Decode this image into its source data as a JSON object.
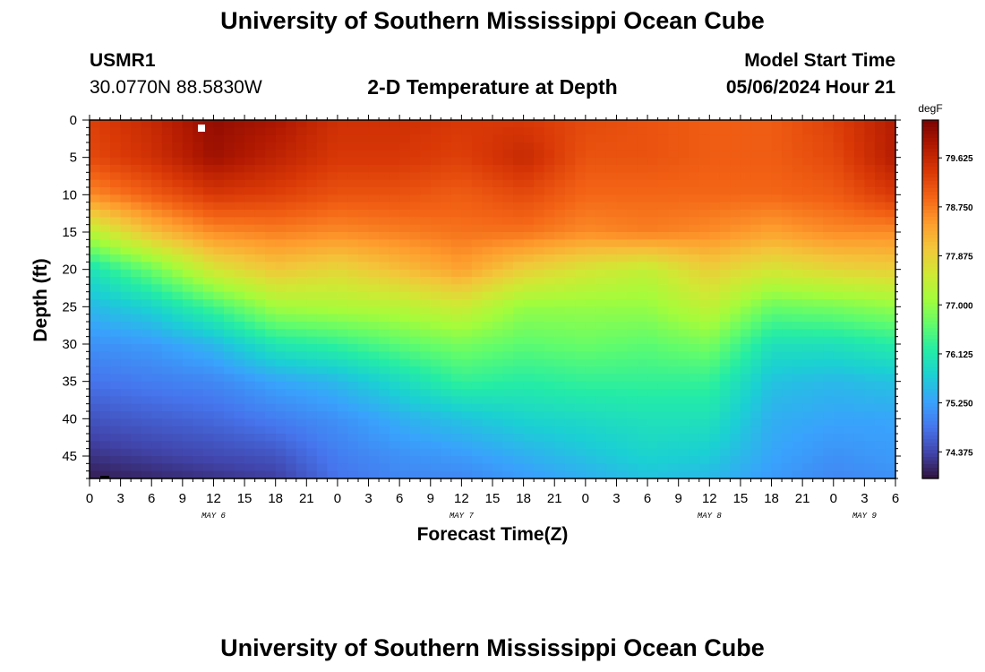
{
  "header": {
    "title": "University of Southern Mississippi Ocean Cube",
    "station_id": "USMR1",
    "station_coords": "30.0770N  88.5830W",
    "subtitle": "2-D Temperature at Depth",
    "model_start_label": "Model Start Time",
    "model_start_value": "05/06/2024 Hour 21"
  },
  "footer": {
    "title": "University of Southern Mississippi Ocean Cube"
  },
  "chart_data": {
    "type": "heatmap",
    "title": "2-D Temperature at Depth",
    "xlabel": "Forecast Time(Z)",
    "ylabel": "Depth (ft)",
    "x_hours_range": [
      0,
      78
    ],
    "x_tick_labels": [
      "0",
      "3",
      "6",
      "9",
      "12",
      "15",
      "18",
      "21",
      "0",
      "3",
      "6",
      "9",
      "12",
      "15",
      "18",
      "21",
      "0",
      "3",
      "6",
      "9",
      "12",
      "15",
      "18",
      "21",
      "0",
      "3",
      "6"
    ],
    "date_labels": [
      {
        "text": "MAY 6",
        "hour": 12
      },
      {
        "text": "MAY 7",
        "hour": 36
      },
      {
        "text": "MAY 8",
        "hour": 60
      },
      {
        "text": "MAY 9",
        "hour": 75
      }
    ],
    "y_range": [
      0,
      48
    ],
    "y_tick_labels": [
      "0",
      "5",
      "10",
      "15",
      "20",
      "25",
      "30",
      "35",
      "40",
      "45"
    ],
    "colorbar": {
      "unit": "degF",
      "min": 73.9,
      "max": 80.3,
      "tick_labels": [
        "79.625",
        "78.750",
        "77.875",
        "77.000",
        "76.125",
        "75.250",
        "74.375"
      ],
      "colors": [
        "#30123b",
        "#4145ab",
        "#4675ed",
        "#39a2fc",
        "#1bcfd4",
        "#24eca6",
        "#61fc6c",
        "#a4fc3b",
        "#d1e834",
        "#f3c63a",
        "#fe9b2d",
        "#f36315",
        "#d93806",
        "#b11901",
        "#7a0403"
      ]
    },
    "profiles_hour": [
      0,
      6,
      12,
      18,
      24,
      30,
      36,
      42,
      48,
      54,
      60,
      66,
      72,
      78
    ],
    "profiles_depth_ft": [
      0,
      5,
      10,
      15,
      20,
      25,
      30,
      35,
      40,
      45,
      48
    ],
    "profiles_degF": [
      [
        79.3,
        79.2,
        78.6,
        77.3,
        76.0,
        75.5,
        75.1,
        74.8,
        74.5,
        74.2,
        74.0
      ],
      [
        79.6,
        79.5,
        79.0,
        78.1,
        76.7,
        75.8,
        75.2,
        74.9,
        74.6,
        74.3,
        74.1
      ],
      [
        80.1,
        80.0,
        79.4,
        78.6,
        77.6,
        76.4,
        75.5,
        75.0,
        74.7,
        74.4,
        74.2
      ],
      [
        79.9,
        79.7,
        79.3,
        78.7,
        78.0,
        77.1,
        76.1,
        75.3,
        74.9,
        74.5,
        74.3
      ],
      [
        79.5,
        79.4,
        79.1,
        78.6,
        77.8,
        77.2,
        76.3,
        75.5,
        75.1,
        74.9,
        74.8
      ],
      [
        79.5,
        79.4,
        79.1,
        78.7,
        78.1,
        77.3,
        76.6,
        75.9,
        75.4,
        75.1,
        75.0
      ],
      [
        79.4,
        79.3,
        79.0,
        78.8,
        78.4,
        77.5,
        76.8,
        76.3,
        75.6,
        75.2,
        75.0
      ],
      [
        79.4,
        79.6,
        79.2,
        78.8,
        77.9,
        77.0,
        76.6,
        76.2,
        75.8,
        75.4,
        75.2
      ],
      [
        79.2,
        79.1,
        78.9,
        78.6,
        77.6,
        77.0,
        76.7,
        76.3,
        75.9,
        75.6,
        75.4
      ],
      [
        79.1,
        79.1,
        78.9,
        78.7,
        77.4,
        77.0,
        76.6,
        76.3,
        76.0,
        75.8,
        75.6
      ],
      [
        79.0,
        79.0,
        78.9,
        78.6,
        77.9,
        77.4,
        76.8,
        76.3,
        76.0,
        75.7,
        75.5
      ],
      [
        79.0,
        79.0,
        78.9,
        78.4,
        77.6,
        76.7,
        76.0,
        75.6,
        75.4,
        75.3,
        75.2
      ],
      [
        79.3,
        79.2,
        79.0,
        78.6,
        77.8,
        76.8,
        76.0,
        75.5,
        75.3,
        75.1,
        75.0
      ],
      [
        79.8,
        79.8,
        79.4,
        78.6,
        77.9,
        77.0,
        76.2,
        75.6,
        75.3,
        75.2,
        75.1
      ]
    ]
  }
}
